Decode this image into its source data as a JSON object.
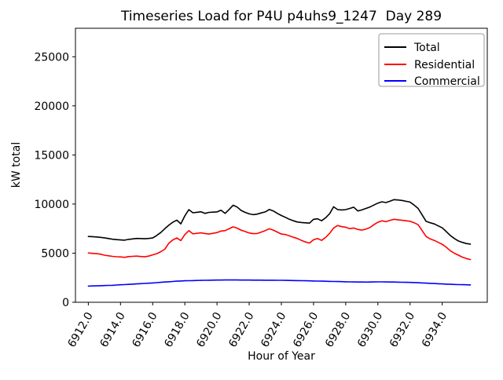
{
  "chart_data": {
    "type": "line",
    "title": "Timeseries Load for P4U p4uhs9_1247  Day 289",
    "xlabel": "Hour of Year",
    "ylabel": "kW total",
    "xlim": [
      6911.2,
      6936.8
    ],
    "ylim": [
      0,
      27900
    ],
    "grid": false,
    "legend_position": "upper right",
    "xticks": [
      6912,
      6914,
      6916,
      6918,
      6920,
      6922,
      6924,
      6926,
      6928,
      6930,
      6932,
      6934
    ],
    "xtick_labels": [
      "6912.0",
      "6914.0",
      "6916.0",
      "6918.0",
      "6920.0",
      "6922.0",
      "6924.0",
      "6926.0",
      "6928.0",
      "6930.0",
      "6932.0",
      "6934.0"
    ],
    "yticks": [
      0,
      5000,
      10000,
      15000,
      20000,
      25000
    ],
    "ytick_labels": [
      "0",
      "5000",
      "10000",
      "15000",
      "20000",
      "25000"
    ],
    "x": [
      6912.0,
      6912.25,
      6912.5,
      6912.75,
      6913.0,
      6913.25,
      6913.5,
      6913.75,
      6914.0,
      6914.25,
      6914.5,
      6914.75,
      6915.0,
      6915.25,
      6915.5,
      6915.75,
      6916.0,
      6916.25,
      6916.5,
      6916.75,
      6917.0,
      6917.25,
      6917.5,
      6917.75,
      6918.0,
      6918.25,
      6918.5,
      6918.75,
      6919.0,
      6919.25,
      6919.5,
      6919.75,
      6920.0,
      6920.25,
      6920.5,
      6920.75,
      6921.0,
      6921.25,
      6921.5,
      6921.75,
      6922.0,
      6922.25,
      6922.5,
      6922.75,
      6923.0,
      6923.25,
      6923.5,
      6923.75,
      6924.0,
      6924.25,
      6924.5,
      6924.75,
      6925.0,
      6925.25,
      6925.5,
      6925.75,
      6926.0,
      6926.25,
      6926.5,
      6926.75,
      6927.0,
      6927.25,
      6927.5,
      6927.75,
      6928.0,
      6928.25,
      6928.5,
      6928.75,
      6929.0,
      6929.25,
      6929.5,
      6929.75,
      6930.0,
      6930.25,
      6930.5,
      6930.75,
      6931.0,
      6931.25,
      6931.5,
      6931.75,
      6932.0,
      6932.25,
      6932.5,
      6932.75,
      6933.0,
      6933.25,
      6933.5,
      6933.75,
      6934.0,
      6934.25,
      6934.5,
      6934.75,
      6935.0,
      6935.25,
      6935.5,
      6935.75
    ],
    "series": [
      {
        "name": "Total",
        "color": "#000000",
        "values": [
          6700,
          6680,
          6650,
          6610,
          6560,
          6490,
          6420,
          6380,
          6350,
          6320,
          6400,
          6450,
          6500,
          6490,
          6470,
          6500,
          6550,
          6800,
          7100,
          7480,
          7840,
          8150,
          8360,
          7990,
          8800,
          9430,
          9110,
          9160,
          9220,
          9050,
          9150,
          9180,
          9200,
          9370,
          9050,
          9450,
          9880,
          9700,
          9350,
          9150,
          9000,
          8920,
          8980,
          9100,
          9200,
          9450,
          9300,
          9050,
          8830,
          8650,
          8450,
          8300,
          8170,
          8120,
          8090,
          8060,
          8450,
          8500,
          8300,
          8600,
          9020,
          9720,
          9430,
          9400,
          9430,
          9550,
          9680,
          9300,
          9400,
          9550,
          9700,
          9900,
          10100,
          10230,
          10150,
          10300,
          10450,
          10420,
          10370,
          10280,
          10200,
          9900,
          9550,
          8900,
          8240,
          8100,
          7980,
          7780,
          7580,
          7200,
          6800,
          6500,
          6240,
          6100,
          5980,
          5920
        ]
      },
      {
        "name": "Residential",
        "color": "#ff0000",
        "values": [
          5020,
          4980,
          4950,
          4900,
          4800,
          4730,
          4680,
          4640,
          4620,
          4570,
          4650,
          4680,
          4700,
          4660,
          4630,
          4700,
          4830,
          4950,
          5150,
          5400,
          6000,
          6350,
          6550,
          6280,
          6900,
          7290,
          6970,
          7020,
          7070,
          7000,
          6950,
          7020,
          7100,
          7250,
          7300,
          7480,
          7680,
          7550,
          7350,
          7200,
          7050,
          6990,
          7000,
          7150,
          7300,
          7480,
          7350,
          7150,
          6950,
          6900,
          6760,
          6620,
          6490,
          6300,
          6140,
          6030,
          6360,
          6490,
          6300,
          6600,
          7020,
          7560,
          7820,
          7700,
          7640,
          7500,
          7560,
          7420,
          7350,
          7450,
          7600,
          7900,
          8150,
          8300,
          8200,
          8350,
          8450,
          8400,
          8350,
          8300,
          8250,
          8100,
          7900,
          7300,
          6700,
          6450,
          6300,
          6100,
          5900,
          5600,
          5250,
          5000,
          4800,
          4600,
          4450,
          4350
        ]
      },
      {
        "name": "Commercial",
        "color": "#0000ff",
        "values": [
          1650,
          1660,
          1670,
          1685,
          1700,
          1715,
          1730,
          1755,
          1780,
          1800,
          1825,
          1845,
          1870,
          1895,
          1920,
          1945,
          1970,
          2000,
          2030,
          2060,
          2090,
          2120,
          2150,
          2170,
          2190,
          2200,
          2210,
          2220,
          2230,
          2240,
          2250,
          2255,
          2260,
          2265,
          2268,
          2270,
          2270,
          2268,
          2265,
          2262,
          2260,
          2258,
          2255,
          2252,
          2250,
          2248,
          2245,
          2242,
          2240,
          2232,
          2225,
          2218,
          2210,
          2200,
          2190,
          2180,
          2170,
          2160,
          2150,
          2140,
          2130,
          2120,
          2110,
          2100,
          2090,
          2080,
          2072,
          2065,
          2060,
          2058,
          2060,
          2070,
          2080,
          2078,
          2072,
          2066,
          2060,
          2050,
          2040,
          2030,
          2020,
          2005,
          1990,
          1970,
          1950,
          1930,
          1910,
          1890,
          1870,
          1850,
          1830,
          1815,
          1800,
          1790,
          1780,
          1770
        ]
      }
    ]
  }
}
